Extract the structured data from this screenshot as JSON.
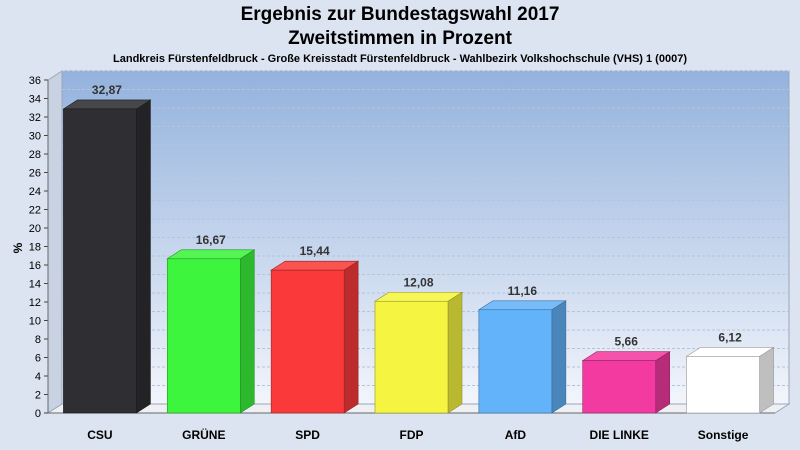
{
  "chart_data": {
    "type": "bar",
    "title": "Ergebnis zur Bundestagswahl 2017",
    "subtitle": "Zweitstimmen in Prozent",
    "caption": "Landkreis Fürstenfeldbruck - Große Kreisstadt Fürstenfeldbruck - Wahlbezirk Volkshochschule (VHS) 1 (0007)",
    "xlabel": "",
    "ylabel": "%",
    "ylim": [
      0,
      36
    ],
    "yticks": [
      "0",
      "2",
      "4",
      "6",
      "8",
      "10",
      "12",
      "14",
      "16",
      "18",
      "20",
      "22",
      "24",
      "26",
      "28",
      "30",
      "32",
      "34",
      "36"
    ],
    "categories": [
      "CSU",
      "GRÜNE",
      "SPD",
      "FDP",
      "AfD",
      "DIE LINKE",
      "Sonstige"
    ],
    "values": [
      32.87,
      16.67,
      15.44,
      12.08,
      11.16,
      5.66,
      6.12
    ],
    "value_labels": [
      "32,87",
      "16,67",
      "15,44",
      "12,08",
      "11,16",
      "5,66",
      "6,12"
    ],
    "colors": [
      "#2e2e33",
      "#3cf53c",
      "#fa3a3a",
      "#f5f541",
      "#63b3fa",
      "#f23aa0",
      "#ffffff"
    ],
    "grid": true,
    "legend": "none"
  }
}
